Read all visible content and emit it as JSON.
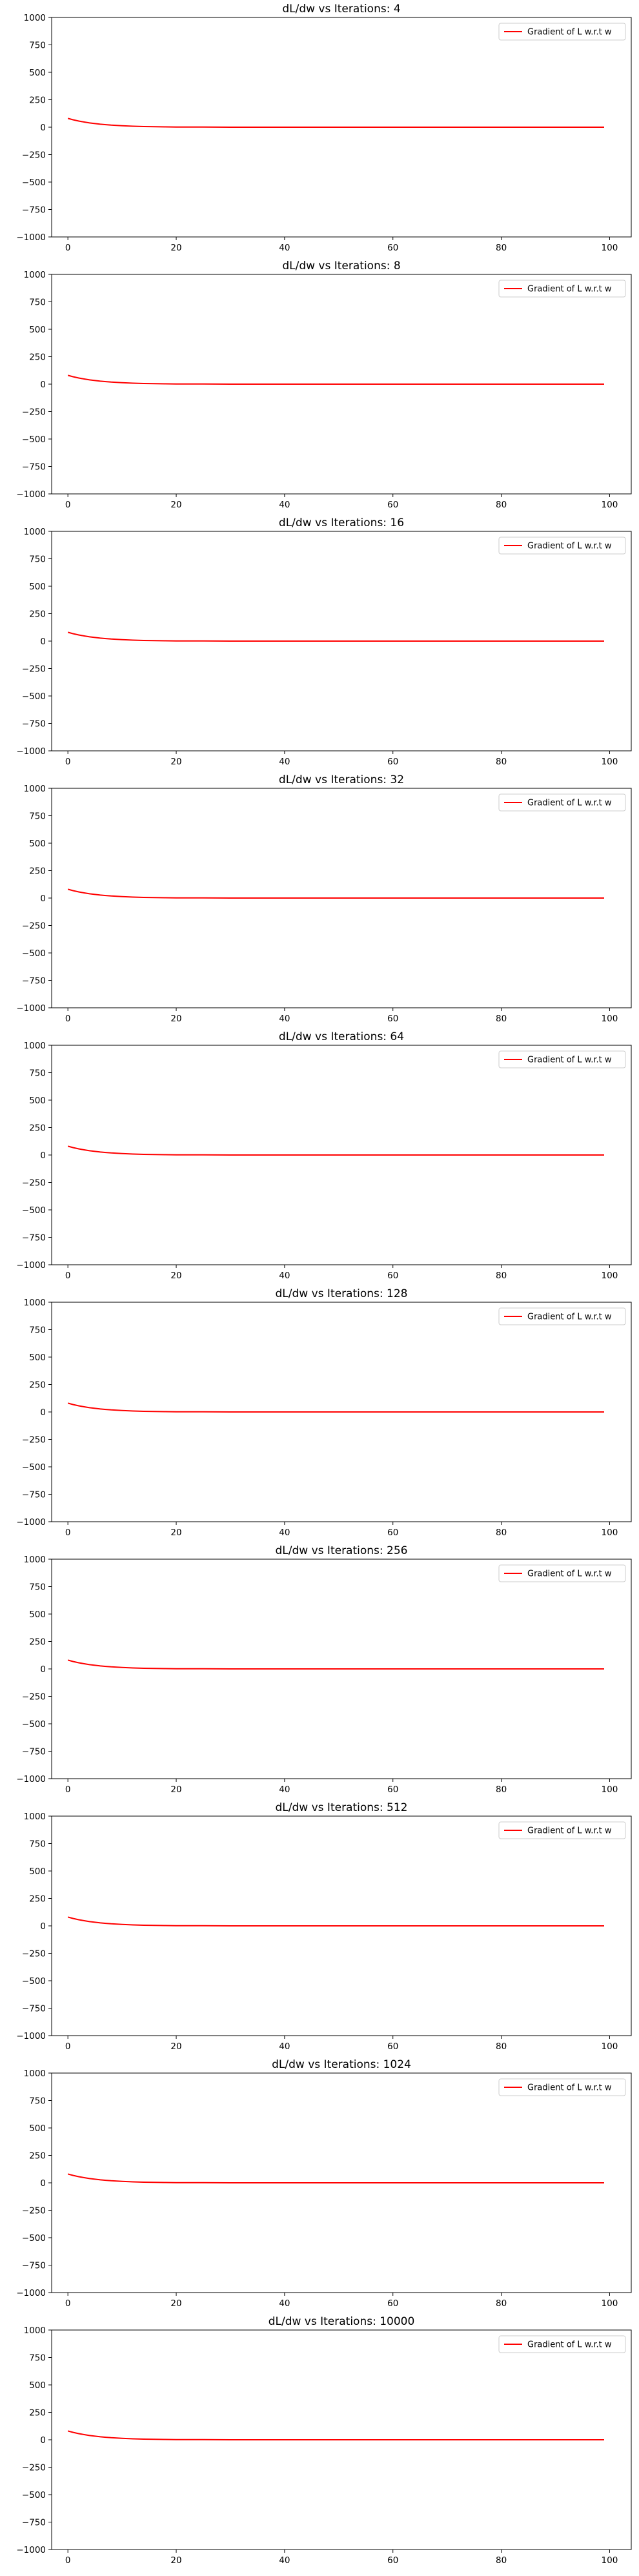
{
  "chart_data": [
    {
      "type": "line",
      "title": "dL/dw vs Iterations: 4",
      "xlim": [
        -3,
        104
      ],
      "ylim": [
        -1000,
        1000
      ],
      "xticks": [
        "0",
        "20",
        "40",
        "60",
        "80",
        "100"
      ],
      "yticks": [
        "1000",
        "750",
        "500",
        "250",
        "0",
        "−250",
        "−500",
        "−750",
        "−1000"
      ],
      "legend_position": "top-right",
      "series": [
        {
          "name": "Gradient of L w.r.t w",
          "color": "#ff0000",
          "x": [
            0,
            1,
            2,
            3,
            4,
            5,
            6,
            7,
            8,
            9,
            10,
            12,
            14,
            16,
            18,
            20,
            25,
            30,
            40,
            50,
            60,
            70,
            80,
            90,
            99
          ],
          "y": [
            80,
            67,
            56,
            47,
            39,
            33,
            27,
            23,
            19,
            16,
            13,
            9,
            6,
            4,
            3,
            2,
            1,
            0,
            0,
            0,
            0,
            0,
            0,
            0,
            0
          ]
        }
      ]
    },
    {
      "type": "line",
      "title": "dL/dw vs Iterations: 8",
      "xlim": [
        -3,
        104
      ],
      "ylim": [
        -1000,
        1000
      ],
      "xticks": [
        "0",
        "20",
        "40",
        "60",
        "80",
        "100"
      ],
      "yticks": [
        "1000",
        "750",
        "500",
        "250",
        "0",
        "−250",
        "−500",
        "−750",
        "−1000"
      ],
      "legend_position": "top-right",
      "series": [
        {
          "name": "Gradient of L w.r.t w",
          "color": "#ff0000",
          "x": [
            0,
            1,
            2,
            3,
            4,
            5,
            6,
            7,
            8,
            9,
            10,
            12,
            14,
            16,
            18,
            20,
            25,
            30,
            40,
            50,
            60,
            70,
            80,
            90,
            99
          ],
          "y": [
            80,
            67,
            56,
            47,
            39,
            33,
            27,
            23,
            19,
            16,
            13,
            9,
            6,
            4,
            3,
            2,
            1,
            0,
            0,
            0,
            0,
            0,
            0,
            0,
            0
          ]
        }
      ]
    },
    {
      "type": "line",
      "title": "dL/dw vs Iterations: 16",
      "xlim": [
        -3,
        104
      ],
      "ylim": [
        -1000,
        1000
      ],
      "xticks": [
        "0",
        "20",
        "40",
        "60",
        "80",
        "100"
      ],
      "yticks": [
        "1000",
        "750",
        "500",
        "250",
        "0",
        "−250",
        "−500",
        "−750",
        "−1000"
      ],
      "legend_position": "top-right",
      "series": [
        {
          "name": "Gradient of L w.r.t w",
          "color": "#ff0000",
          "x": [
            0,
            1,
            2,
            3,
            4,
            5,
            6,
            7,
            8,
            9,
            10,
            12,
            14,
            16,
            18,
            20,
            25,
            30,
            40,
            50,
            60,
            70,
            80,
            90,
            99
          ],
          "y": [
            80,
            67,
            56,
            47,
            39,
            33,
            27,
            23,
            19,
            16,
            13,
            9,
            6,
            4,
            3,
            2,
            1,
            0,
            0,
            0,
            0,
            0,
            0,
            0,
            0
          ]
        }
      ]
    },
    {
      "type": "line",
      "title": "dL/dw vs Iterations: 32",
      "xlim": [
        -3,
        104
      ],
      "ylim": [
        -1000,
        1000
      ],
      "xticks": [
        "0",
        "20",
        "40",
        "60",
        "80",
        "100"
      ],
      "yticks": [
        "1000",
        "750",
        "500",
        "250",
        "0",
        "−250",
        "−500",
        "−750",
        "−1000"
      ],
      "legend_position": "top-right",
      "series": [
        {
          "name": "Gradient of L w.r.t w",
          "color": "#ff0000",
          "x": [
            0,
            1,
            2,
            3,
            4,
            5,
            6,
            7,
            8,
            9,
            10,
            12,
            14,
            16,
            18,
            20,
            25,
            30,
            40,
            50,
            60,
            70,
            80,
            90,
            99
          ],
          "y": [
            80,
            67,
            56,
            47,
            39,
            33,
            27,
            23,
            19,
            16,
            13,
            9,
            6,
            4,
            3,
            2,
            1,
            0,
            0,
            0,
            0,
            0,
            0,
            0,
            0
          ]
        }
      ]
    },
    {
      "type": "line",
      "title": "dL/dw vs Iterations: 64",
      "xlim": [
        -3,
        104
      ],
      "ylim": [
        -1000,
        1000
      ],
      "xticks": [
        "0",
        "20",
        "40",
        "60",
        "80",
        "100"
      ],
      "yticks": [
        "1000",
        "750",
        "500",
        "250",
        "0",
        "−250",
        "−500",
        "−750",
        "−1000"
      ],
      "legend_position": "top-right",
      "series": [
        {
          "name": "Gradient of L w.r.t w",
          "color": "#ff0000",
          "x": [
            0,
            1,
            2,
            3,
            4,
            5,
            6,
            7,
            8,
            9,
            10,
            12,
            14,
            16,
            18,
            20,
            25,
            30,
            40,
            50,
            60,
            70,
            80,
            90,
            99
          ],
          "y": [
            80,
            67,
            56,
            47,
            39,
            33,
            27,
            23,
            19,
            16,
            13,
            9,
            6,
            4,
            3,
            2,
            1,
            0,
            0,
            0,
            0,
            0,
            0,
            0,
            0
          ]
        }
      ]
    },
    {
      "type": "line",
      "title": "dL/dw vs Iterations: 128",
      "xlim": [
        -3,
        104
      ],
      "ylim": [
        -1000,
        1000
      ],
      "xticks": [
        "0",
        "20",
        "40",
        "60",
        "80",
        "100"
      ],
      "yticks": [
        "1000",
        "750",
        "500",
        "250",
        "0",
        "−250",
        "−500",
        "−750",
        "−1000"
      ],
      "legend_position": "top-right",
      "series": [
        {
          "name": "Gradient of L w.r.t w",
          "color": "#ff0000",
          "x": [
            0,
            1,
            2,
            3,
            4,
            5,
            6,
            7,
            8,
            9,
            10,
            12,
            14,
            16,
            18,
            20,
            25,
            30,
            40,
            50,
            60,
            70,
            80,
            90,
            99
          ],
          "y": [
            80,
            67,
            56,
            47,
            39,
            33,
            27,
            23,
            19,
            16,
            13,
            9,
            6,
            4,
            3,
            2,
            1,
            0,
            0,
            0,
            0,
            0,
            0,
            0,
            0
          ]
        }
      ]
    },
    {
      "type": "line",
      "title": "dL/dw vs Iterations: 256",
      "xlim": [
        -3,
        104
      ],
      "ylim": [
        -1000,
        1000
      ],
      "xticks": [
        "0",
        "20",
        "40",
        "60",
        "80",
        "100"
      ],
      "yticks": [
        "1000",
        "750",
        "500",
        "250",
        "0",
        "−250",
        "−500",
        "−750",
        "−1000"
      ],
      "legend_position": "top-right",
      "series": [
        {
          "name": "Gradient of L w.r.t w",
          "color": "#ff0000",
          "x": [
            0,
            1,
            2,
            3,
            4,
            5,
            6,
            7,
            8,
            9,
            10,
            12,
            14,
            16,
            18,
            20,
            25,
            30,
            40,
            50,
            60,
            70,
            80,
            90,
            99
          ],
          "y": [
            80,
            67,
            56,
            47,
            39,
            33,
            27,
            23,
            19,
            16,
            13,
            9,
            6,
            4,
            3,
            2,
            1,
            0,
            0,
            0,
            0,
            0,
            0,
            0,
            0
          ]
        }
      ]
    },
    {
      "type": "line",
      "title": "dL/dw vs Iterations: 512",
      "xlim": [
        -3,
        104
      ],
      "ylim": [
        -1000,
        1000
      ],
      "xticks": [
        "0",
        "20",
        "40",
        "60",
        "80",
        "100"
      ],
      "yticks": [
        "1000",
        "750",
        "500",
        "250",
        "0",
        "−250",
        "−500",
        "−750",
        "−1000"
      ],
      "legend_position": "top-right",
      "series": [
        {
          "name": "Gradient of L w.r.t w",
          "color": "#ff0000",
          "x": [
            0,
            1,
            2,
            3,
            4,
            5,
            6,
            7,
            8,
            9,
            10,
            12,
            14,
            16,
            18,
            20,
            25,
            30,
            40,
            50,
            60,
            70,
            80,
            90,
            99
          ],
          "y": [
            80,
            67,
            56,
            47,
            39,
            33,
            27,
            23,
            19,
            16,
            13,
            9,
            6,
            4,
            3,
            2,
            1,
            0,
            0,
            0,
            0,
            0,
            0,
            0,
            0
          ]
        }
      ]
    },
    {
      "type": "line",
      "title": "dL/dw vs Iterations: 1024",
      "xlim": [
        -3,
        104
      ],
      "ylim": [
        -1000,
        1000
      ],
      "xticks": [
        "0",
        "20",
        "40",
        "60",
        "80",
        "100"
      ],
      "yticks": [
        "1000",
        "750",
        "500",
        "250",
        "0",
        "−250",
        "−500",
        "−750",
        "−1000"
      ],
      "legend_position": "top-right",
      "series": [
        {
          "name": "Gradient of L w.r.t w",
          "color": "#ff0000",
          "x": [
            0,
            1,
            2,
            3,
            4,
            5,
            6,
            7,
            8,
            9,
            10,
            12,
            14,
            16,
            18,
            20,
            25,
            30,
            40,
            50,
            60,
            70,
            80,
            90,
            99
          ],
          "y": [
            80,
            67,
            56,
            47,
            39,
            33,
            27,
            23,
            19,
            16,
            13,
            9,
            6,
            4,
            3,
            2,
            1,
            0,
            0,
            0,
            0,
            0,
            0,
            0,
            0
          ]
        }
      ]
    },
    {
      "type": "line",
      "title": "dL/dw vs Iterations: 10000",
      "xlim": [
        -3,
        104
      ],
      "ylim": [
        -1000,
        1000
      ],
      "xticks": [
        "0",
        "20",
        "40",
        "60",
        "80",
        "100"
      ],
      "yticks": [
        "1000",
        "750",
        "500",
        "250",
        "0",
        "−250",
        "−500",
        "−750",
        "−1000"
      ],
      "legend_position": "top-right",
      "series": [
        {
          "name": "Gradient of L w.r.t w",
          "color": "#ff0000",
          "x": [
            0,
            1,
            2,
            3,
            4,
            5,
            6,
            7,
            8,
            9,
            10,
            12,
            14,
            16,
            18,
            20,
            25,
            30,
            40,
            50,
            60,
            70,
            80,
            90,
            99
          ],
          "y": [
            80,
            67,
            56,
            47,
            39,
            33,
            27,
            23,
            19,
            16,
            13,
            9,
            6,
            4,
            3,
            2,
            1,
            0,
            0,
            0,
            0,
            0,
            0,
            0,
            0
          ]
        }
      ]
    }
  ]
}
